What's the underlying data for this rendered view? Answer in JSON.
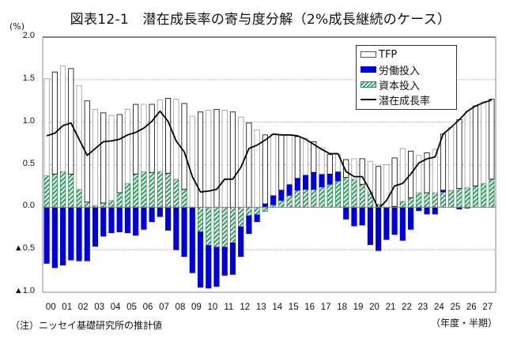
{
  "title": "図表12-1　潜在成長率の寄与度分解（2%成長継続のケース）",
  "y_unit": "(%)",
  "x_unit": "（年度・半期）",
  "note": "（注）ニッセイ基礎研究所の推計値",
  "colors": {
    "labor": "#0000dd",
    "capital": "#2e8b57",
    "capital_bg": "#d9f2e6",
    "tfp_edge": "#999999",
    "line": "#000000",
    "grid": "#bbbbbb"
  },
  "chart_data": {
    "type": "bar",
    "stacked": true,
    "title": "図表12-1　潜在成長率の寄与度分解（2%成長継続のケース）",
    "xlabel": "（年度・半期）",
    "ylabel": "(%)",
    "ylim": [
      -1.0,
      2.0
    ],
    "yticks": [
      2.0,
      1.5,
      1.0,
      0.5,
      0.0,
      -0.5,
      -1.0
    ],
    "ytick_labels": [
      "2.0",
      "1.5",
      "1.0",
      "0.5",
      "0.0",
      "▲0.5",
      "▲1.0"
    ],
    "grid": true,
    "legend_position": "top-right",
    "x_tick_labels": [
      "00",
      "01",
      "02",
      "03",
      "04",
      "05",
      "06",
      "07",
      "08",
      "09",
      "10",
      "11",
      "12",
      "13",
      "14",
      "15",
      "16",
      "17",
      "18",
      "19",
      "20",
      "21",
      "22",
      "23",
      "24",
      "25",
      "26",
      "27"
    ],
    "periods_per_label": 2,
    "series": [
      {
        "name": "TFP",
        "kind": "bar",
        "values": [
          1.14,
          1.2,
          1.24,
          1.24,
          1.22,
          1.19,
          1.13,
          1.06,
          1.0,
          0.92,
          0.87,
          0.82,
          0.79,
          0.8,
          0.84,
          0.88,
          0.94,
          1.01,
          1.07,
          1.12,
          1.14,
          1.15,
          1.14,
          1.12,
          1.06,
          0.99,
          0.91,
          0.81,
          0.72,
          0.65,
          0.58,
          0.49,
          0.43,
          0.36,
          0.31,
          0.23,
          0.2,
          0.21,
          0.24,
          0.3,
          0.36,
          0.45,
          0.5,
          0.57,
          0.62,
          0.55,
          0.44,
          0.47,
          0.51,
          0.66,
          0.74,
          0.81,
          0.9,
          0.94,
          0.96,
          0.94
        ]
      },
      {
        "name": "労働投入",
        "kind": "bar",
        "values": [
          -0.66,
          -0.71,
          -0.68,
          -0.62,
          -0.63,
          -0.63,
          -0.46,
          -0.34,
          -0.3,
          -0.29,
          -0.3,
          -0.33,
          -0.26,
          -0.17,
          -0.11,
          -0.27,
          -0.5,
          -0.58,
          -0.77,
          -0.65,
          -0.5,
          -0.46,
          -0.33,
          -0.37,
          -0.35,
          -0.21,
          -0.08,
          0.04,
          0.11,
          0.12,
          0.13,
          0.14,
          0.17,
          0.2,
          0.15,
          0.12,
          0.11,
          -0.14,
          -0.22,
          -0.21,
          -0.44,
          -0.51,
          -0.38,
          -0.32,
          -0.39,
          -0.26,
          -0.04,
          -0.08,
          -0.08,
          0.02,
          0.0,
          -0.02,
          -0.01,
          0.0,
          0.0,
          0.0
        ]
      },
      {
        "name": "資本投入",
        "kind": "bar",
        "values": [
          0.37,
          0.39,
          0.42,
          0.39,
          0.21,
          0.06,
          0.02,
          0.05,
          0.08,
          0.17,
          0.28,
          0.39,
          0.42,
          0.41,
          0.42,
          0.4,
          0.33,
          0.21,
          0.0,
          -0.29,
          -0.45,
          -0.47,
          -0.47,
          -0.42,
          -0.23,
          -0.1,
          -0.09,
          -0.05,
          0.03,
          0.08,
          0.14,
          0.2,
          0.21,
          0.21,
          0.24,
          0.27,
          0.31,
          0.35,
          0.33,
          0.27,
          0.18,
          0.03,
          0.0,
          0.01,
          0.07,
          0.11,
          0.17,
          0.17,
          0.17,
          0.18,
          0.2,
          0.22,
          0.23,
          0.25,
          0.28,
          0.33
        ]
      },
      {
        "name": "潜在成長率",
        "kind": "line",
        "values": [
          0.84,
          0.87,
          0.96,
          0.99,
          0.8,
          0.61,
          0.69,
          0.77,
          0.78,
          0.8,
          0.85,
          0.88,
          0.93,
          1.01,
          1.13,
          1.01,
          0.78,
          0.65,
          0.36,
          0.18,
          0.19,
          0.21,
          0.33,
          0.33,
          0.47,
          0.69,
          0.73,
          0.79,
          0.86,
          0.85,
          0.85,
          0.84,
          0.8,
          0.74,
          0.68,
          0.63,
          0.63,
          0.42,
          0.36,
          0.36,
          0.19,
          -0.02,
          0.08,
          0.25,
          0.28,
          0.39,
          0.52,
          0.57,
          0.59,
          0.86,
          0.94,
          1.03,
          1.13,
          1.19,
          1.23,
          1.26
        ]
      }
    ]
  },
  "legend": {
    "tfp": "TFP",
    "labor": "労働投入",
    "capital": "資本投入",
    "line": "潜在成長率"
  }
}
